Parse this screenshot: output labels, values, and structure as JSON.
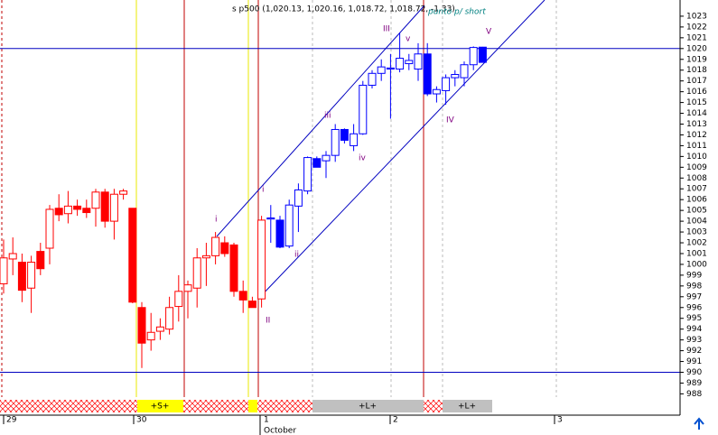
{
  "chart_data": {
    "type": "candlestick",
    "title": "s p500 (1,020.13, 1,020.16, 1,018.72, 1,018.72, -1.33)",
    "ylim": [
      987.7,
      1024.5
    ],
    "yticks": [
      988,
      989,
      990,
      991,
      992,
      993,
      994,
      995,
      996,
      997,
      998,
      999,
      1000,
      1001,
      1002,
      1003,
      1004,
      1005,
      1006,
      1007,
      1008,
      1009,
      1010,
      1011,
      1012,
      1013,
      1014,
      1015,
      1016,
      1017,
      1018,
      1019,
      1020,
      1021,
      1022,
      1023
    ],
    "hlines": [
      1020,
      990
    ],
    "hline_color": "#0000c0",
    "x_labels": [
      "29",
      "30",
      "1",
      "2",
      "3"
    ],
    "month_label": "October",
    "sessions": [
      "+S+",
      "+L+",
      "+L+"
    ],
    "annotations": [
      "punto p/ short",
      "i",
      "ii",
      "iii",
      "iv",
      "v",
      "III",
      "i",
      "II",
      "IV",
      "V"
    ],
    "series": [
      {
        "color": "#ff0000",
        "open": [
          998.2,
          1000.5,
          1000.2,
          997.8,
          1001.2,
          1001.5,
          1005.2,
          1004.7,
          1005.4,
          1005.2,
          1005.2,
          1006.7,
          1004,
          1006.5,
          1005.2,
          996,
          993,
          993.8,
          994,
          996.1,
          997.5,
          997.8,
          1000.6,
          1000.8,
          1002,
          1001.8,
          997.5,
          996.6,
          996.8
        ],
        "high": [
          1002.3,
          1002.5,
          1001,
          1000.8,
          1002,
          1005.5,
          1006.5,
          1006.8,
          1006,
          1006,
          1007,
          1007,
          1007,
          1007,
          1005.2,
          996.5,
          995.5,
          995,
          997,
          999,
          998.5,
          1001.5,
          1002,
          1003,
          1002.6,
          1002,
          998.5,
          997,
          1004.5
        ],
        "low": [
          997.3,
          999,
          996.5,
          995.5,
          999,
          1000,
          1004,
          1003.8,
          1004.5,
          1004.3,
          1003.5,
          1003.4,
          1002.3,
          1006,
          996.4,
          990.4,
          992,
          993,
          993.5,
          994.7,
          995,
          996,
          998,
          1000,
          1000.7,
          997,
          995.5,
          996,
          996
        ],
        "close": [
          1000.6,
          1001,
          997.6,
          1000.2,
          999.6,
          1005.1,
          1004.6,
          1005.4,
          1005.1,
          1004.8,
          1006.7,
          1004,
          1006.5,
          1006.8,
          996.5,
          992.7,
          993.7,
          994.2,
          996,
          997.5,
          998.1,
          1000.6,
          1000.8,
          1002.5,
          1001,
          997.5,
          996.7,
          996,
          1004.1
        ]
      },
      {
        "color": "#0000ff",
        "open": [
          1004.2,
          1004.1,
          1001.7,
          1005.4,
          1006.8,
          1009.8,
          1009.6,
          1010.1,
          1012.5,
          1011,
          1012.1,
          1016.6,
          1017.7,
          1018.1,
          1018.1,
          1018.6,
          1018.1,
          1019.5,
          1015.8,
          1016.1,
          1017.3,
          1017.3,
          1018.5,
          1020.13
        ],
        "high": [
          1005.5,
          1004.5,
          1006,
          1007.5,
          1010,
          1010,
          1010.5,
          1013,
          1012.6,
          1013,
          1017,
          1018,
          1019,
          1019.5,
          1021.5,
          1019.5,
          1020.5,
          1020.5,
          1016.5,
          1017.6,
          1018,
          1018.8,
          1020.2,
          1020.16
        ],
        "low": [
          1002,
          1001.5,
          1001.5,
          1003,
          1006.5,
          1009,
          1008,
          1009.5,
          1011.2,
          1010.5,
          1012,
          1016.3,
          1017,
          1013.5,
          1017.8,
          1018,
          1017,
          1015.6,
          1015,
          1014.8,
          1016.5,
          1016.5,
          1018,
          1018.72
        ],
        "close": [
          1004.3,
          1001.6,
          1005.5,
          1006.9,
          1009.9,
          1009,
          1010.1,
          1012.5,
          1011.5,
          1012.1,
          1016.6,
          1017.7,
          1018.3,
          1018.2,
          1019.1,
          1018.9,
          1019.5,
          1015.8,
          1016.2,
          1017.3,
          1017.6,
          1018.5,
          1020.1,
          1018.72
        ]
      }
    ]
  }
}
